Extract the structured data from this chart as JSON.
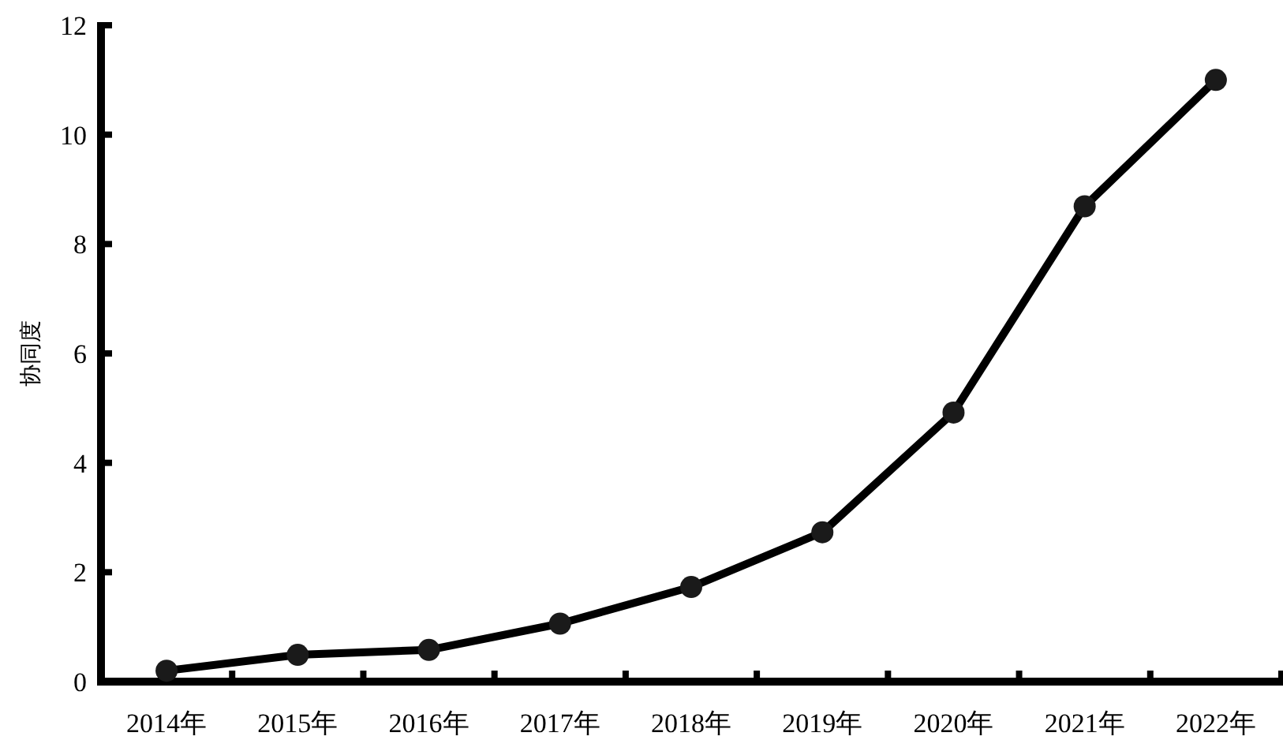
{
  "chart_data": {
    "type": "line",
    "ylabel": "协同度",
    "categories": [
      "2014年",
      "2015年",
      "2016年",
      "2017年",
      "2018年",
      "2019年",
      "2020年",
      "2021年",
      "2022年"
    ],
    "series": [
      {
        "color": "#000000",
        "values": [
          0.2,
          0.49,
          0.58,
          1.06,
          1.73,
          2.73,
          4.92,
          8.69,
          11.0
        ]
      }
    ],
    "ylim": [
      0,
      12
    ],
    "yticks": [
      0,
      2,
      4,
      6,
      8,
      10,
      12
    ],
    "marker": "circle",
    "line_style": "solid",
    "grid": false
  }
}
